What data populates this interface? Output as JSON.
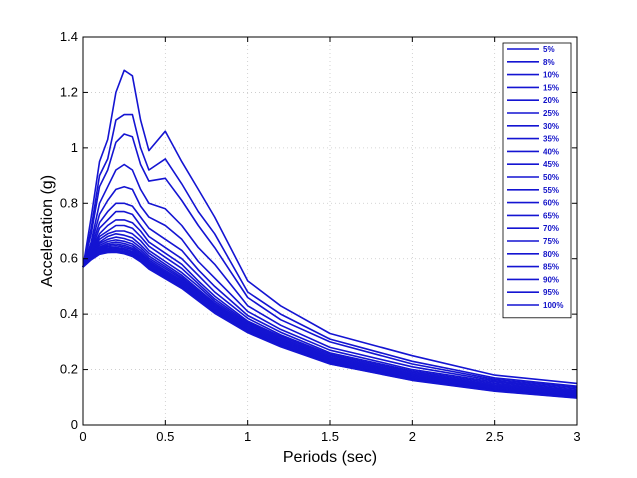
{
  "chart_data": {
    "type": "line",
    "xlabel": "Periods (sec)",
    "ylabel": "Acceleration (g)",
    "xlim": [
      0,
      3
    ],
    "ylim": [
      0,
      1.4
    ],
    "xticks": [
      "0",
      "0.5",
      "1",
      "1.5",
      "2",
      "2.5",
      "3"
    ],
    "yticks": [
      "0",
      "0.2",
      "0.4",
      "0.6",
      "0.8",
      "1",
      "1.2",
      "1.4"
    ],
    "grid": true,
    "legend_position": "top-right",
    "line_color": "#1414d2",
    "x": [
      0.0,
      0.05,
      0.1,
      0.15,
      0.2,
      0.25,
      0.3,
      0.35,
      0.4,
      0.5,
      0.6,
      0.7,
      0.8,
      1.0,
      1.2,
      1.5,
      2.0,
      2.5,
      3.0
    ],
    "series": [
      {
        "name": "5%",
        "values": [
          0.57,
          0.75,
          0.95,
          1.03,
          1.2,
          1.28,
          1.26,
          1.1,
          0.99,
          1.06,
          0.95,
          0.85,
          0.75,
          0.52,
          0.43,
          0.33,
          0.25,
          0.18,
          0.15
        ]
      },
      {
        "name": "8%",
        "values": [
          0.57,
          0.71,
          0.9,
          0.96,
          1.1,
          1.12,
          1.12,
          1.0,
          0.92,
          0.96,
          0.87,
          0.77,
          0.69,
          0.48,
          0.4,
          0.31,
          0.23,
          0.17,
          0.14
        ]
      },
      {
        "name": "10%",
        "values": [
          0.57,
          0.69,
          0.86,
          0.92,
          1.02,
          1.05,
          1.04,
          0.94,
          0.88,
          0.89,
          0.81,
          0.72,
          0.64,
          0.46,
          0.38,
          0.3,
          0.22,
          0.165,
          0.135
        ]
      },
      {
        "name": "15%",
        "values": [
          0.57,
          0.66,
          0.8,
          0.86,
          0.92,
          0.94,
          0.92,
          0.85,
          0.8,
          0.78,
          0.72,
          0.64,
          0.58,
          0.43,
          0.36,
          0.28,
          0.21,
          0.16,
          0.13
        ]
      },
      {
        "name": "20%",
        "values": [
          0.57,
          0.65,
          0.76,
          0.81,
          0.85,
          0.86,
          0.85,
          0.79,
          0.75,
          0.72,
          0.67,
          0.59,
          0.53,
          0.41,
          0.345,
          0.27,
          0.2,
          0.155,
          0.125
        ]
      },
      {
        "name": "25%",
        "values": [
          0.57,
          0.64,
          0.73,
          0.77,
          0.8,
          0.8,
          0.79,
          0.75,
          0.71,
          0.67,
          0.63,
          0.56,
          0.5,
          0.395,
          0.335,
          0.26,
          0.195,
          0.15,
          0.12
        ]
      },
      {
        "name": "30%",
        "values": [
          0.57,
          0.63,
          0.71,
          0.74,
          0.77,
          0.77,
          0.76,
          0.72,
          0.68,
          0.64,
          0.6,
          0.54,
          0.48,
          0.385,
          0.325,
          0.255,
          0.19,
          0.145,
          0.118
        ]
      },
      {
        "name": "35%",
        "values": [
          0.57,
          0.63,
          0.69,
          0.72,
          0.74,
          0.74,
          0.73,
          0.7,
          0.66,
          0.62,
          0.58,
          0.52,
          0.465,
          0.375,
          0.32,
          0.25,
          0.185,
          0.142,
          0.115
        ]
      },
      {
        "name": "40%",
        "values": [
          0.57,
          0.62,
          0.68,
          0.7,
          0.72,
          0.72,
          0.71,
          0.68,
          0.645,
          0.605,
          0.565,
          0.51,
          0.455,
          0.37,
          0.315,
          0.245,
          0.182,
          0.139,
          0.113
        ]
      },
      {
        "name": "45%",
        "values": [
          0.57,
          0.62,
          0.67,
          0.69,
          0.7,
          0.7,
          0.69,
          0.665,
          0.63,
          0.59,
          0.55,
          0.5,
          0.447,
          0.365,
          0.31,
          0.242,
          0.179,
          0.137,
          0.111
        ]
      },
      {
        "name": "50%",
        "values": [
          0.57,
          0.615,
          0.66,
          0.68,
          0.69,
          0.685,
          0.675,
          0.65,
          0.62,
          0.58,
          0.54,
          0.49,
          0.44,
          0.36,
          0.306,
          0.239,
          0.176,
          0.135,
          0.109
        ]
      },
      {
        "name": "55%",
        "values": [
          0.57,
          0.612,
          0.655,
          0.67,
          0.678,
          0.673,
          0.663,
          0.64,
          0.61,
          0.572,
          0.533,
          0.484,
          0.434,
          0.356,
          0.302,
          0.236,
          0.174,
          0.133,
          0.107
        ]
      },
      {
        "name": "60%",
        "values": [
          0.57,
          0.61,
          0.648,
          0.662,
          0.668,
          0.663,
          0.653,
          0.631,
          0.602,
          0.565,
          0.527,
          0.478,
          0.429,
          0.352,
          0.299,
          0.233,
          0.172,
          0.131,
          0.105
        ]
      },
      {
        "name": "65%",
        "values": [
          0.57,
          0.607,
          0.642,
          0.655,
          0.66,
          0.655,
          0.645,
          0.623,
          0.595,
          0.558,
          0.521,
          0.473,
          0.425,
          0.349,
          0.296,
          0.231,
          0.17,
          0.129,
          0.104
        ]
      },
      {
        "name": "70%",
        "values": [
          0.57,
          0.605,
          0.637,
          0.649,
          0.653,
          0.648,
          0.638,
          0.617,
          0.589,
          0.552,
          0.516,
          0.468,
          0.421,
          0.346,
          0.293,
          0.229,
          0.168,
          0.128,
          0.103
        ]
      },
      {
        "name": "75%",
        "values": [
          0.57,
          0.603,
          0.633,
          0.644,
          0.647,
          0.642,
          0.632,
          0.611,
          0.584,
          0.547,
          0.511,
          0.464,
          0.417,
          0.343,
          0.291,
          0.227,
          0.167,
          0.127,
          0.102
        ]
      },
      {
        "name": "80%",
        "values": [
          0.57,
          0.601,
          0.629,
          0.639,
          0.641,
          0.636,
          0.626,
          0.606,
          0.579,
          0.542,
          0.507,
          0.46,
          0.414,
          0.341,
          0.289,
          0.225,
          0.165,
          0.126,
          0.101
        ]
      },
      {
        "name": "85%",
        "values": [
          0.57,
          0.6,
          0.625,
          0.634,
          0.636,
          0.631,
          0.621,
          0.601,
          0.574,
          0.538,
          0.503,
          0.457,
          0.411,
          0.339,
          0.287,
          0.224,
          0.164,
          0.125,
          0.1
        ]
      },
      {
        "name": "90%",
        "values": [
          0.57,
          0.598,
          0.622,
          0.63,
          0.631,
          0.626,
          0.616,
          0.597,
          0.57,
          0.534,
          0.499,
          0.454,
          0.408,
          0.337,
          0.285,
          0.222,
          0.163,
          0.124,
          0.099
        ]
      },
      {
        "name": "95%",
        "values": [
          0.57,
          0.597,
          0.619,
          0.626,
          0.627,
          0.622,
          0.612,
          0.593,
          0.566,
          0.531,
          0.496,
          0.451,
          0.406,
          0.335,
          0.284,
          0.221,
          0.162,
          0.123,
          0.098
        ]
      },
      {
        "name": "100%",
        "values": [
          0.57,
          0.596,
          0.616,
          0.622,
          0.623,
          0.618,
          0.608,
          0.589,
          0.563,
          0.528,
          0.493,
          0.448,
          0.403,
          0.333,
          0.282,
          0.22,
          0.161,
          0.122,
          0.097
        ]
      }
    ]
  }
}
